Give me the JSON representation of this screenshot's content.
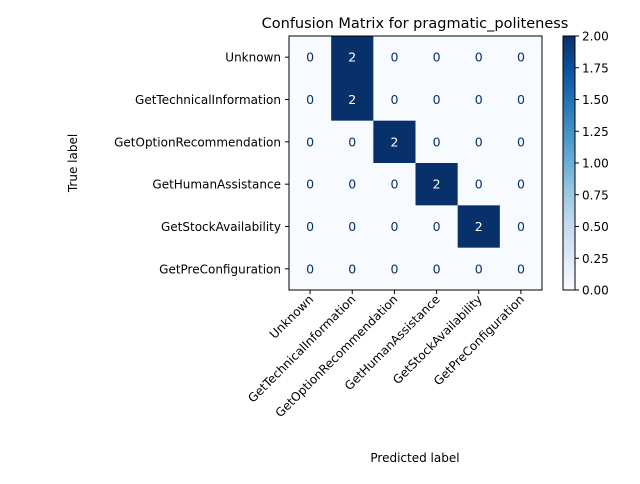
{
  "chart_data": {
    "type": "heatmap",
    "title": "Confusion Matrix for pragmatic_politeness",
    "xlabel": "Predicted label",
    "ylabel": "True label",
    "labels": [
      "Unknown",
      "GetTechnicalInformation",
      "GetOptionRecommendation",
      "GetHumanAssistance",
      "GetStockAvailability",
      "GetPreConfiguration"
    ],
    "matrix": [
      [
        0,
        2,
        0,
        0,
        0,
        0
      ],
      [
        0,
        2,
        0,
        0,
        0,
        0
      ],
      [
        0,
        0,
        2,
        0,
        0,
        0
      ],
      [
        0,
        0,
        0,
        2,
        0,
        0
      ],
      [
        0,
        0,
        0,
        0,
        2,
        0
      ],
      [
        0,
        0,
        0,
        0,
        0,
        0
      ]
    ],
    "colormap": "Blues",
    "colorbar": {
      "range": [
        0,
        2
      ],
      "ticks": [
        "0.00",
        "0.25",
        "0.50",
        "0.75",
        "1.00",
        "1.25",
        "1.50",
        "1.75",
        "2.00"
      ]
    },
    "colors": {
      "low": "#f7fbff",
      "high": "#08306b",
      "text_on_dark": "#ffffff",
      "text_on_light": "#08306b"
    }
  }
}
